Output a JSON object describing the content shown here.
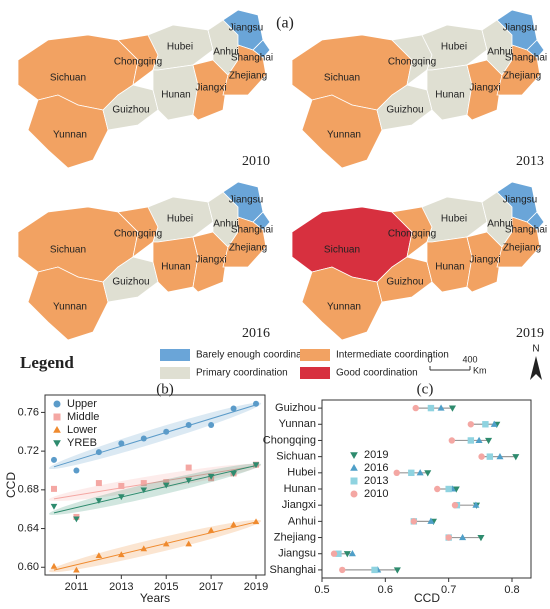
{
  "map_data": {
    "label": "(a)",
    "classes": [
      {
        "name": "Barely enough coordination",
        "color": "#6aa5d8"
      },
      {
        "name": "Primary coordination",
        "color": "#dfdfd2"
      },
      {
        "name": "Intermediate coordination",
        "color": "#f2a262"
      },
      {
        "name": "Good coordination",
        "color": "#d7303f"
      }
    ],
    "panels": [
      {
        "year": "2010",
        "regions": [
          {
            "name": "Sichuan",
            "class": 2
          },
          {
            "name": "Yunnan",
            "class": 2
          },
          {
            "name": "Chongqing",
            "class": 2
          },
          {
            "name": "Guizhou",
            "class": 1
          },
          {
            "name": "Hubei",
            "class": 1
          },
          {
            "name": "Hunan",
            "class": 1
          },
          {
            "name": "Jiangxi",
            "class": 2
          },
          {
            "name": "Anhui",
            "class": 1
          },
          {
            "name": "Jiangsu",
            "class": 0
          },
          {
            "name": "Shanghai",
            "class": 0
          },
          {
            "name": "Zhejiang",
            "class": 2
          }
        ]
      },
      {
        "year": "2013",
        "regions": [
          {
            "name": "Sichuan",
            "class": 2
          },
          {
            "name": "Yunnan",
            "class": 2
          },
          {
            "name": "Chongqing",
            "class": 1
          },
          {
            "name": "Guizhou",
            "class": 1
          },
          {
            "name": "Hubei",
            "class": 1
          },
          {
            "name": "Hunan",
            "class": 1
          },
          {
            "name": "Jiangxi",
            "class": 2
          },
          {
            "name": "Anhui",
            "class": 1
          },
          {
            "name": "Jiangsu",
            "class": 0
          },
          {
            "name": "Shanghai",
            "class": 0
          },
          {
            "name": "Zhejiang",
            "class": 2
          }
        ]
      },
      {
        "year": "2016",
        "regions": [
          {
            "name": "Sichuan",
            "class": 2
          },
          {
            "name": "Yunnan",
            "class": 2
          },
          {
            "name": "Chongqing",
            "class": 2
          },
          {
            "name": "Guizhou",
            "class": 1
          },
          {
            "name": "Hubei",
            "class": 1
          },
          {
            "name": "Hunan",
            "class": 2
          },
          {
            "name": "Jiangxi",
            "class": 2
          },
          {
            "name": "Anhui",
            "class": 1
          },
          {
            "name": "Jiangsu",
            "class": 0
          },
          {
            "name": "Shanghai",
            "class": 0
          },
          {
            "name": "Zhejiang",
            "class": 2
          }
        ]
      },
      {
        "year": "2019",
        "regions": [
          {
            "name": "Sichuan",
            "class": 3
          },
          {
            "name": "Yunnan",
            "class": 2
          },
          {
            "name": "Chongqing",
            "class": 2
          },
          {
            "name": "Guizhou",
            "class": 2
          },
          {
            "name": "Hubei",
            "class": 1
          },
          {
            "name": "Hunan",
            "class": 2
          },
          {
            "name": "Jiangxi",
            "class": 2
          },
          {
            "name": "Anhui",
            "class": 1
          },
          {
            "name": "Jiangsu",
            "class": 0
          },
          {
            "name": "Shanghai",
            "class": 0
          },
          {
            "name": "Zhejiang",
            "class": 2
          }
        ]
      }
    ],
    "legend_title": "Legend",
    "scale": {
      "ticks": [
        0,
        400
      ],
      "unit": "Km"
    },
    "north": "N"
  },
  "chart_data": [
    {
      "type": "scatter",
      "label": "(b)",
      "x_label": "Years",
      "y_label": "CCD",
      "x": [
        2010,
        2011,
        2012,
        2013,
        2014,
        2015,
        2016,
        2017,
        2018,
        2019
      ],
      "xlim": [
        2009.6,
        2019.4
      ],
      "xticks": [
        2011,
        2013,
        2015,
        2017,
        2019
      ],
      "ylim": [
        0.592,
        0.778
      ],
      "yticks": [
        {
          "value": 0.6,
          "label": "0.60"
        },
        0.64,
        0.68,
        0.72,
        0.76
      ],
      "trend": true,
      "series": [
        {
          "name": "Upper",
          "color": "#5b9bc9",
          "marker": "circle",
          "values": [
            0.711,
            0.7,
            0.719,
            0.728,
            0.733,
            0.74,
            0.747,
            0.747,
            0.764,
            0.769
          ]
        },
        {
          "name": "Middle",
          "color": "#f4a7a3",
          "marker": "square",
          "values": [
            0.681,
            0.652,
            0.687,
            0.684,
            0.687,
            0.688,
            0.703,
            0.692,
            0.697,
            0.706
          ]
        },
        {
          "name": "Lower",
          "color": "#ef8a2e",
          "marker": "triangle",
          "values": [
            0.601,
            0.597,
            0.612,
            0.613,
            0.619,
            0.624,
            0.624,
            0.638,
            0.644,
            0.647
          ]
        },
        {
          "name": "YREB",
          "color": "#2e8b6e",
          "marker": "triangle-down",
          "values": [
            0.663,
            0.65,
            0.669,
            0.673,
            0.68,
            0.685,
            0.69,
            0.694,
            0.697,
            0.706
          ]
        }
      ]
    },
    {
      "type": "dot",
      "label": "(c)",
      "x_label": "CCD",
      "categories": [
        "Guizhou",
        "Yunnan",
        "Chongqing",
        "Sichuan",
        "Hubei",
        "Hunan",
        "Jiangxi",
        "Anhui",
        "Zhejiang",
        "Jiangsu",
        "Shanghai"
      ],
      "xlim": [
        0.5,
        0.83
      ],
      "xticks": [
        0.5,
        0.6,
        0.7,
        0.8
      ],
      "series": [
        {
          "name": "2019",
          "color": "#2e8b6e",
          "marker": "triangle-down",
          "values": [
            0.706,
            0.776,
            0.763,
            0.806,
            0.667,
            0.712,
            0.744,
            0.676,
            0.751,
            0.54,
            0.619
          ]
        },
        {
          "name": "2016",
          "color": "#4f9fc8",
          "marker": "triangle",
          "values": [
            0.688,
            0.772,
            0.748,
            0.781,
            0.655,
            0.706,
            0.743,
            0.672,
            0.722,
            0.548,
            0.588
          ]
        },
        {
          "name": "2013",
          "color": "#8fd3e0",
          "marker": "square",
          "values": [
            0.672,
            0.758,
            0.735,
            0.765,
            0.641,
            0.7,
            0.713,
            0.645,
            0.7,
            0.526,
            0.583
          ]
        },
        {
          "name": "2010",
          "color": "#f4a7a3",
          "marker": "circle",
          "values": [
            0.648,
            0.735,
            0.705,
            0.752,
            0.618,
            0.682,
            0.71,
            0.645,
            0.7,
            0.519,
            0.532
          ]
        }
      ]
    }
  ]
}
